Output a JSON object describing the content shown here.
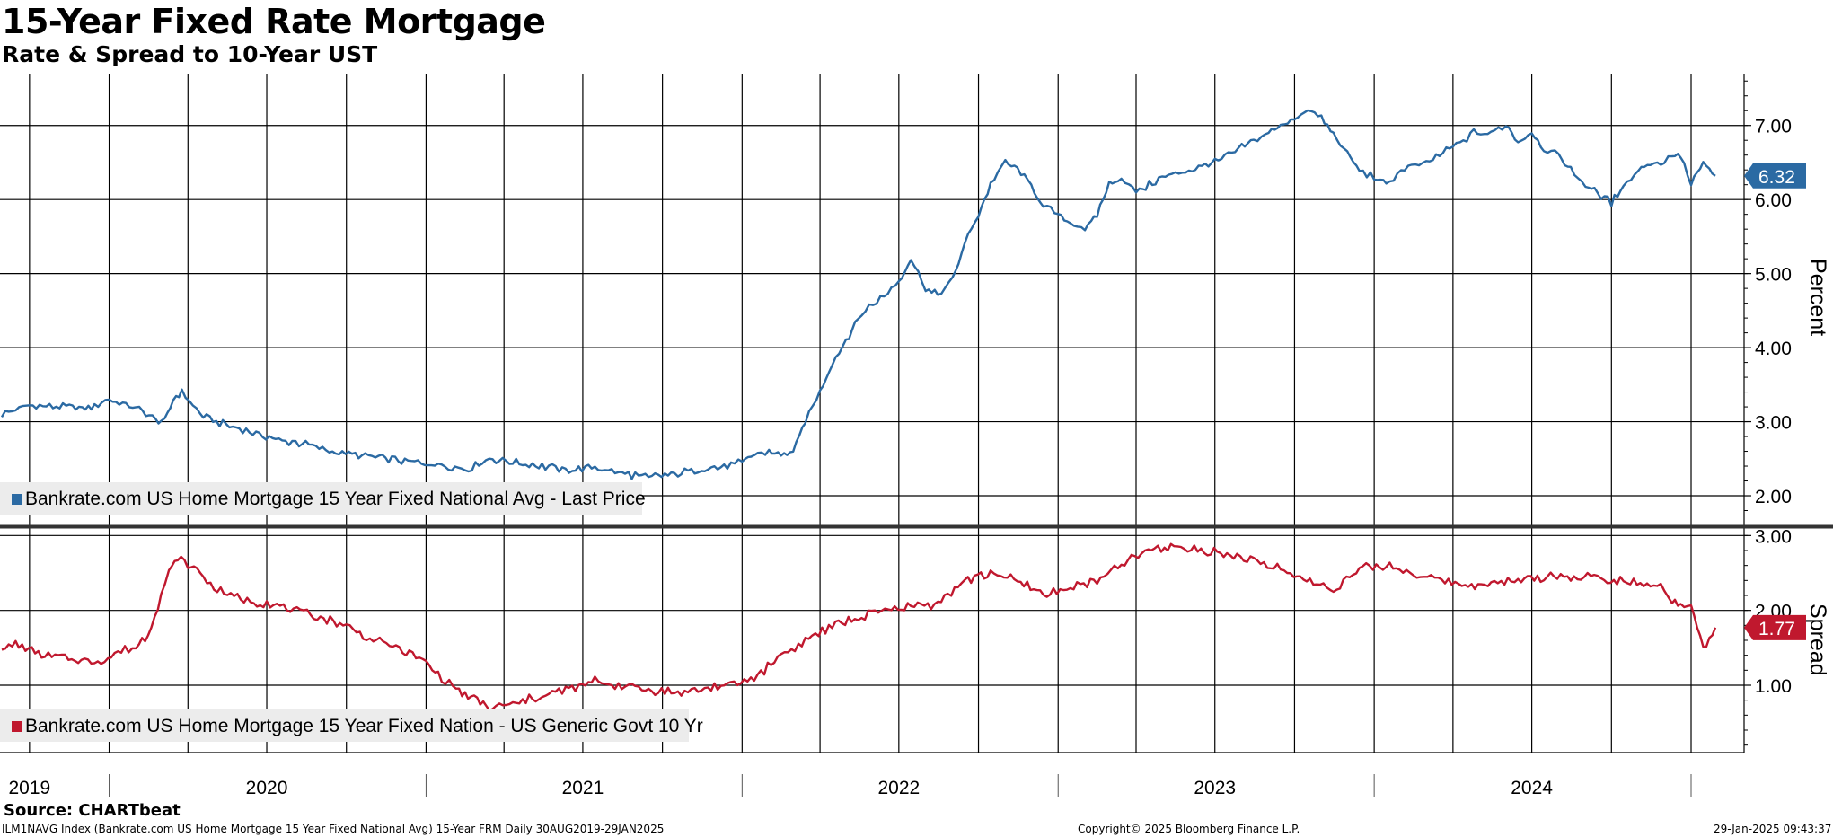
{
  "title": "15-Year Fixed Rate Mortgage",
  "subtitle": "Rate & Spread to 10-Year UST",
  "source": "Source: CHARTbeat",
  "footer": {
    "left": "ILM1NAVG Index (Bankrate.com US Home Mortgage 15 Year Fixed National Avg) 15-Year FRM  Daily 30AUG2019-29JAN2025",
    "middle": "Copyright© 2025 Bloomberg Finance L.P.",
    "right": "29-Jan-2025 09:43:37"
  },
  "colors": {
    "rate": "#2b6aa3",
    "spread": "#c0182e",
    "grid": "#000000"
  },
  "chart_data": [
    {
      "type": "line",
      "ylabel": "Percent",
      "ylim": [
        1.6,
        7.7
      ],
      "yticks": [
        2.0,
        3.0,
        4.0,
        5.0,
        6.0,
        7.0
      ],
      "ytick_labels": [
        "2.00",
        "3.00",
        "4.00",
        "5.00",
        "6.00",
        "7.00"
      ],
      "grid": true,
      "legend_position": "bottom-left",
      "series": [
        {
          "name": "Bankrate.com US Home Mortgage 15 Year Fixed National Avg - Last Price",
          "last_value": "6.32",
          "x": [
            "2019-08-30",
            "2019-10-01",
            "2019-11-01",
            "2019-12-01",
            "2019-12-15",
            "2020-01-01",
            "2020-02-01",
            "2020-02-20",
            "2020-03-05",
            "2020-03-15",
            "2020-03-25",
            "2020-04-15",
            "2020-05-15",
            "2020-06-15",
            "2020-07-15",
            "2020-08-15",
            "2020-09-15",
            "2020-10-15",
            "2020-11-15",
            "2020-12-15",
            "2021-01-15",
            "2021-02-15",
            "2021-03-15",
            "2021-04-15",
            "2021-05-15",
            "2021-06-15",
            "2021-07-15",
            "2021-08-15",
            "2021-09-15",
            "2021-10-15",
            "2021-11-15",
            "2021-12-15",
            "2022-01-01",
            "2022-01-15",
            "2022-02-01",
            "2022-02-15",
            "2022-03-01",
            "2022-03-15",
            "2022-04-01",
            "2022-04-15",
            "2022-05-01",
            "2022-05-15",
            "2022-06-01",
            "2022-06-14",
            "2022-07-01",
            "2022-07-15",
            "2022-08-01",
            "2022-08-15",
            "2022-09-01",
            "2022-09-15",
            "2022-10-01",
            "2022-10-15",
            "2022-11-01",
            "2022-11-15",
            "2022-12-01",
            "2022-12-15",
            "2023-01-01",
            "2023-01-15",
            "2023-02-01",
            "2023-02-15",
            "2023-03-01",
            "2023-03-15",
            "2023-04-01",
            "2023-05-01",
            "2023-06-01",
            "2023-07-01",
            "2023-08-01",
            "2023-08-15",
            "2023-09-01",
            "2023-09-15",
            "2023-10-01",
            "2023-10-20",
            "2023-11-01",
            "2023-11-15",
            "2023-12-01",
            "2023-12-15",
            "2024-01-01",
            "2024-01-15",
            "2024-02-01",
            "2024-03-01",
            "2024-04-01",
            "2024-04-25",
            "2024-05-15",
            "2024-06-01",
            "2024-06-15",
            "2024-07-01",
            "2024-07-15",
            "2024-08-01",
            "2024-08-15",
            "2024-09-01",
            "2024-09-15",
            "2024-10-01",
            "2024-10-15",
            "2024-11-01",
            "2024-11-15",
            "2024-12-01",
            "2024-12-10",
            "2024-12-20",
            "2025-01-01",
            "2025-01-15",
            "2025-01-29"
          ],
          "y": [
            3.1,
            3.22,
            3.2,
            3.18,
            3.22,
            3.3,
            3.18,
            3.05,
            3.0,
            3.3,
            3.4,
            3.1,
            2.95,
            2.85,
            2.75,
            2.7,
            2.6,
            2.55,
            2.5,
            2.45,
            2.42,
            2.35,
            2.5,
            2.45,
            2.4,
            2.35,
            2.38,
            2.3,
            2.25,
            2.3,
            2.35,
            2.4,
            2.45,
            2.55,
            2.6,
            2.55,
            2.6,
            3.0,
            3.4,
            3.8,
            4.1,
            4.4,
            4.6,
            4.7,
            4.9,
            5.2,
            4.8,
            4.7,
            4.9,
            5.4,
            5.8,
            6.2,
            6.5,
            6.4,
            6.2,
            5.9,
            5.8,
            5.7,
            5.6,
            5.8,
            6.2,
            6.3,
            6.1,
            6.3,
            6.4,
            6.5,
            6.7,
            6.8,
            6.9,
            7.0,
            7.1,
            7.2,
            7.1,
            6.9,
            6.6,
            6.4,
            6.3,
            6.2,
            6.4,
            6.5,
            6.7,
            6.9,
            6.9,
            7.0,
            6.8,
            6.9,
            6.7,
            6.6,
            6.4,
            6.2,
            6.1,
            5.95,
            6.2,
            6.4,
            6.5,
            6.5,
            6.6,
            6.6,
            6.2,
            6.5,
            6.32
          ]
        }
      ]
    },
    {
      "type": "line",
      "ylabel": "Spread",
      "ylim": [
        0.1,
        3.1
      ],
      "yticks": [
        1.0,
        2.0,
        3.0
      ],
      "ytick_labels": [
        "1.00",
        "2.00",
        "3.00"
      ],
      "grid": true,
      "legend_position": "bottom-left",
      "xticks": [
        {
          "label": "2019",
          "date": "2019-10-01"
        },
        {
          "label": "2020",
          "date": "2020-07-01"
        },
        {
          "label": "2021",
          "date": "2021-07-01"
        },
        {
          "label": "2022",
          "date": "2022-07-01"
        },
        {
          "label": "2023",
          "date": "2023-07-01"
        },
        {
          "label": "2024",
          "date": "2024-07-01"
        }
      ],
      "series": [
        {
          "name": "Bankrate.com US Home Mortgage 15 Year Fixed Nation - US Generic Govt 10 Yr",
          "last_value": "1.77",
          "x": [
            "2019-08-30",
            "2019-09-15",
            "2019-10-15",
            "2019-11-15",
            "2019-12-15",
            "2020-01-15",
            "2020-02-01",
            "2020-02-15",
            "2020-03-01",
            "2020-03-10",
            "2020-03-20",
            "2020-04-01",
            "2020-04-15",
            "2020-05-01",
            "2020-06-01",
            "2020-07-01",
            "2020-08-01",
            "2020-09-01",
            "2020-10-01",
            "2020-11-01",
            "2020-12-01",
            "2021-01-01",
            "2021-01-15",
            "2021-02-01",
            "2021-02-15",
            "2021-03-01",
            "2021-03-15",
            "2021-04-15",
            "2021-05-15",
            "2021-06-15",
            "2021-07-15",
            "2021-08-15",
            "2021-09-15",
            "2021-10-15",
            "2021-11-15",
            "2021-12-15",
            "2022-01-15",
            "2022-02-15",
            "2022-03-15",
            "2022-04-15",
            "2022-05-15",
            "2022-06-15",
            "2022-07-15",
            "2022-08-15",
            "2022-09-15",
            "2022-10-15",
            "2022-11-15",
            "2022-12-15",
            "2023-01-15",
            "2023-02-15",
            "2023-03-15",
            "2023-04-15",
            "2023-05-15",
            "2023-06-15",
            "2023-07-15",
            "2023-08-15",
            "2023-09-15",
            "2023-10-15",
            "2023-11-15",
            "2023-12-15",
            "2024-01-15",
            "2024-02-15",
            "2024-03-15",
            "2024-04-15",
            "2024-05-15",
            "2024-06-15",
            "2024-07-15",
            "2024-08-15",
            "2024-09-15",
            "2024-10-15",
            "2024-11-15",
            "2024-12-01",
            "2024-12-10",
            "2024-12-20",
            "2025-01-01",
            "2025-01-15",
            "2025-01-29"
          ],
          "y": [
            1.5,
            1.55,
            1.4,
            1.35,
            1.3,
            1.45,
            1.5,
            1.7,
            2.2,
            2.5,
            2.7,
            2.6,
            2.5,
            2.3,
            2.15,
            2.1,
            2.0,
            1.9,
            1.8,
            1.6,
            1.5,
            1.3,
            1.15,
            1.0,
            0.85,
            0.8,
            0.7,
            0.75,
            0.85,
            0.95,
            1.05,
            1.0,
            0.95,
            0.9,
            0.95,
            1.0,
            1.1,
            1.4,
            1.6,
            1.8,
            1.9,
            2.0,
            2.05,
            2.1,
            2.4,
            2.5,
            2.4,
            2.2,
            2.3,
            2.4,
            2.6,
            2.8,
            2.85,
            2.8,
            2.75,
            2.65,
            2.55,
            2.4,
            2.3,
            2.55,
            2.6,
            2.5,
            2.4,
            2.35,
            2.35,
            2.4,
            2.45,
            2.45,
            2.45,
            2.4,
            2.35,
            2.3,
            2.1,
            2.05,
            2.05,
            1.5,
            1.77
          ]
        }
      ]
    }
  ]
}
